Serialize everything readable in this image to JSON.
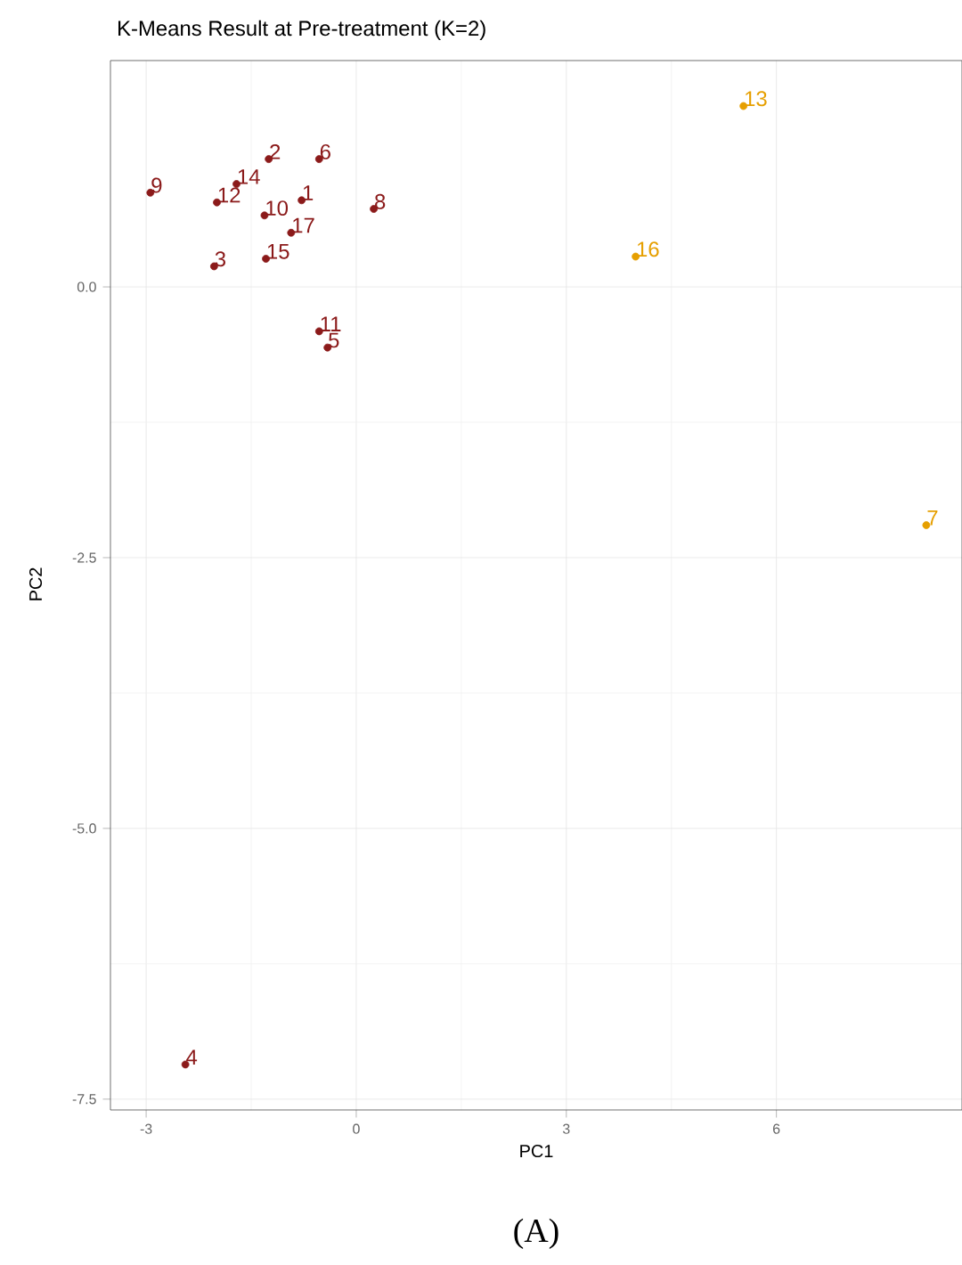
{
  "chart_data": {
    "type": "scatter",
    "title": "K-Means Result at Pre-treatment (K=2)",
    "xlabel": "PC1",
    "ylabel": "PC2",
    "annotations": [
      "(A)",
      {
        "text": "1",
        "x": -0.78,
        "y": 0.8
      },
      {
        "text": "2",
        "x": -1.25,
        "y": 1.18
      },
      {
        "text": "3",
        "x": -2.03,
        "y": 0.19
      },
      {
        "text": "4",
        "x": -2.44,
        "y": -7.18
      },
      {
        "text": "5",
        "x": -0.41,
        "y": -0.56
      },
      {
        "text": "6",
        "x": -0.53,
        "y": 1.18
      },
      {
        "text": "7",
        "x": 8.14,
        "y": -2.2
      },
      {
        "text": "8",
        "x": 0.25,
        "y": 0.72
      },
      {
        "text": "9",
        "x": -2.94,
        "y": 0.87
      },
      {
        "text": "10",
        "x": -1.31,
        "y": 0.66
      },
      {
        "text": "11",
        "x": -0.53,
        "y": -0.41
      },
      {
        "text": "12",
        "x": -1.99,
        "y": 0.78
      },
      {
        "text": "13",
        "x": 5.53,
        "y": 1.67
      },
      {
        "text": "14",
        "x": -1.71,
        "y": 0.95
      },
      {
        "text": "15",
        "x": -1.29,
        "y": 0.26
      },
      {
        "text": "16",
        "x": 3.99,
        "y": 0.28
      },
      {
        "text": "17",
        "x": -0.93,
        "y": 0.5
      }
    ],
    "xlim": [
      -3.51,
      8.65
    ],
    "ylim": [
      -7.6,
      2.09
    ],
    "xticks": [
      -3,
      0,
      3,
      6
    ],
    "yticks": [
      {
        "value": -7.5,
        "label": "-7.5"
      },
      {
        "value": -5.0,
        "label": "-5.0"
      },
      {
        "value": -2.5,
        "label": "-2.5"
      },
      {
        "value": 0.0,
        "label": "0.0"
      }
    ],
    "grid": true,
    "marker": "circle",
    "series": [
      {
        "color": "#8b1a1a",
        "x": [
          -0.78,
          -1.25,
          -2.03,
          -2.44,
          -0.41,
          -0.53,
          0.25,
          -2.94,
          -1.31,
          -0.53,
          -1.99,
          -1.71,
          -1.29,
          -0.93
        ],
        "values": [
          0.8,
          1.18,
          0.19,
          -7.18,
          -0.56,
          1.18,
          0.72,
          0.87,
          0.66,
          -0.41,
          0.78,
          0.95,
          0.26,
          0.5
        ]
      },
      {
        "color": "#e69f00",
        "x": [
          8.14,
          5.53,
          3.99
        ],
        "values": [
          -2.2,
          1.67,
          0.28
        ]
      }
    ]
  }
}
